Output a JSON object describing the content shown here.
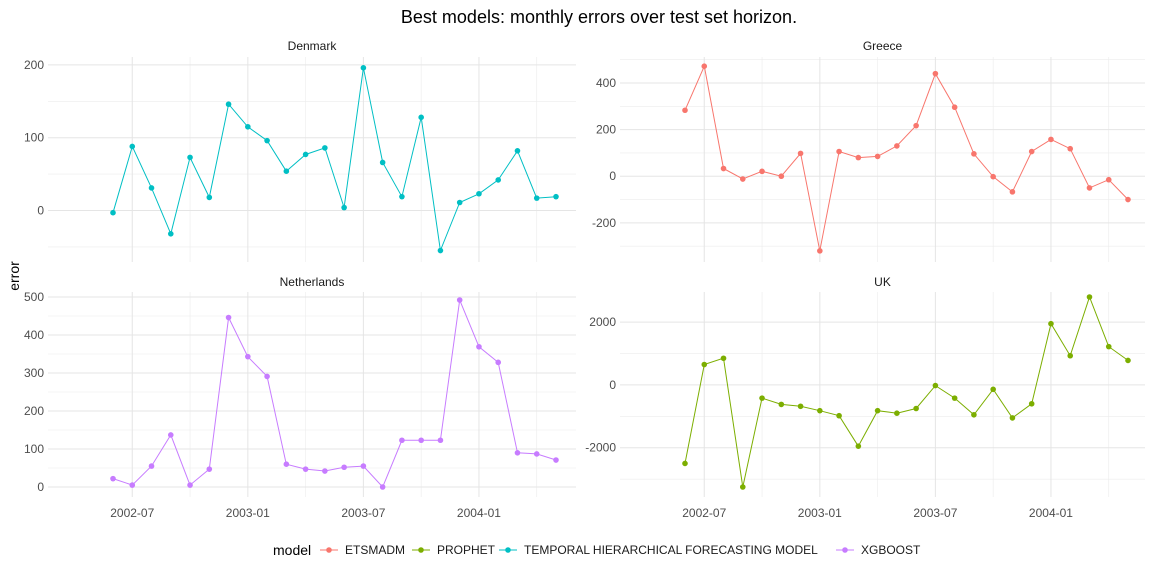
{
  "chart_data": {
    "type": "line",
    "title": "Best models: monthly errors over test set horizon.",
    "ylabel": "error",
    "xlabel": "",
    "x": [
      "2002-06",
      "2002-07",
      "2002-08",
      "2002-09",
      "2002-10",
      "2002-11",
      "2002-12",
      "2003-01",
      "2003-02",
      "2003-03",
      "2003-04",
      "2003-05",
      "2003-06",
      "2003-07",
      "2003-08",
      "2003-09",
      "2003-10",
      "2003-11",
      "2003-12",
      "2004-01",
      "2004-02",
      "2004-03",
      "2004-04",
      "2004-05"
    ],
    "x_ticks": [
      "2002-07",
      "2003-01",
      "2003-07",
      "2004-01"
    ],
    "legend": {
      "title": "model",
      "position": "bottom",
      "items": [
        {
          "name": "ETSMADM",
          "color": "#F8766D"
        },
        {
          "name": "PROPHET",
          "color": "#7CAE00"
        },
        {
          "name": "TEMPORAL HIERARCHICAL FORECASTING MODEL",
          "color": "#00BFC4"
        },
        {
          "name": "XGBOOST",
          "color": "#C77CFF"
        }
      ]
    },
    "grid": true,
    "panels": [
      {
        "name": "Denmark",
        "model": "TEMPORAL HIERARCHICAL FORECASTING MODEL",
        "color": "#00BFC4",
        "ylim": [
          -57,
          204
        ],
        "y_ticks": [
          0,
          100,
          200
        ],
        "values": [
          -3,
          88,
          31,
          -32,
          73,
          18,
          146,
          115,
          96,
          54,
          77,
          86,
          4,
          196,
          66,
          19,
          128,
          -55,
          11,
          23,
          42,
          82,
          17,
          19
        ]
      },
      {
        "name": "Greece",
        "model": "ETSMADM",
        "color": "#F8766D",
        "ylim": [
          -325,
          490
        ],
        "y_ticks": [
          -200,
          0,
          200,
          400
        ],
        "values": [
          283,
          472,
          33,
          -12,
          21,
          0,
          98,
          -320,
          106,
          80,
          85,
          130,
          217,
          440,
          296,
          96,
          -2,
          -67,
          106,
          158,
          118,
          -50,
          -15,
          -100
        ]
      },
      {
        "name": "Netherlands",
        "model": "XGBOOST",
        "color": "#C77CFF",
        "ylim": [
          0,
          500
        ],
        "y_ticks": [
          0,
          100,
          200,
          300,
          400,
          500
        ],
        "values": [
          22,
          5,
          55,
          137,
          5,
          47,
          446,
          343,
          291,
          60,
          47,
          42,
          52,
          55,
          0,
          123,
          123,
          123,
          492,
          369,
          328,
          90,
          87,
          71
        ]
      },
      {
        "name": "UK",
        "model": "PROPHET",
        "color": "#7CAE00",
        "ylim": [
          -3250,
          2800
        ],
        "y_ticks": [
          -2000,
          0,
          2000
        ],
        "values": [
          -2500,
          650,
          850,
          -3250,
          -420,
          -620,
          -680,
          -820,
          -980,
          -1950,
          -820,
          -900,
          -750,
          -20,
          -420,
          -950,
          -140,
          -1050,
          -600,
          1950,
          930,
          2800,
          1220,
          780
        ]
      }
    ]
  }
}
